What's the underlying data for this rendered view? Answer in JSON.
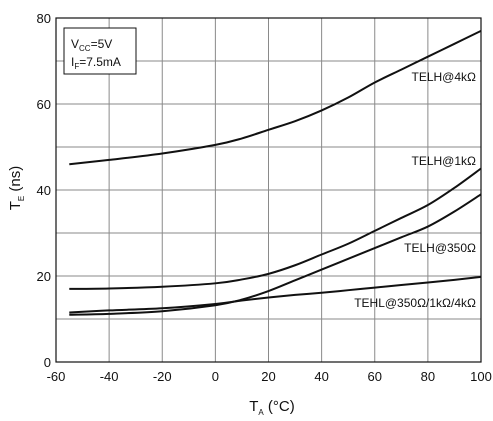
{
  "chart_data": {
    "type": "line",
    "xlabel": {
      "main": "T",
      "sub": "A",
      "unit": " (°C)"
    },
    "ylabel": {
      "main": "T",
      "sub": "E",
      "unit": " (ns)"
    },
    "xlim": [
      -60,
      100
    ],
    "ylim": [
      0,
      80
    ],
    "xticks": [
      -60,
      -40,
      -20,
      0,
      20,
      40,
      60,
      80,
      100
    ],
    "yticks": [
      0,
      20,
      40,
      60,
      80
    ],
    "grid": true,
    "conditions": [
      {
        "main": "V",
        "sub": "CC",
        "rest": "=5V"
      },
      {
        "main": "I",
        "sub": "F",
        "rest": "=7.5mA"
      }
    ],
    "series": [
      {
        "name": "TELH@4kΩ",
        "x": [
          -55,
          -40,
          -20,
          0,
          10,
          20,
          30,
          40,
          50,
          60,
          70,
          80,
          90,
          100
        ],
        "y": [
          46,
          47,
          48.5,
          50.5,
          52,
          54,
          56,
          58.5,
          61.5,
          65,
          68,
          71,
          74,
          77
        ]
      },
      {
        "name": "TELH@1kΩ",
        "x": [
          -55,
          -40,
          -20,
          0,
          10,
          20,
          30,
          40,
          50,
          60,
          70,
          80,
          90,
          100
        ],
        "y": [
          17,
          17.1,
          17.5,
          18.3,
          19.2,
          20.5,
          22.5,
          25,
          27.5,
          30.5,
          33.5,
          36.5,
          40.5,
          45
        ]
      },
      {
        "name": "TELH@350Ω",
        "x": [
          -55,
          -40,
          -20,
          0,
          10,
          20,
          30,
          40,
          50,
          60,
          70,
          80,
          90,
          100
        ],
        "y": [
          11,
          11.2,
          11.8,
          13.2,
          14.5,
          16.5,
          19,
          21.5,
          24,
          26.5,
          29,
          31.5,
          35,
          39
        ]
      },
      {
        "name": "TEHL@350Ω/1kΩ/4kΩ",
        "x": [
          -55,
          -40,
          -20,
          0,
          10,
          20,
          30,
          40,
          50,
          60,
          70,
          80,
          90,
          100
        ],
        "y": [
          11.5,
          12,
          12.5,
          13.5,
          14.3,
          15,
          15.6,
          16.1,
          16.7,
          17.3,
          17.9,
          18.5,
          19.1,
          19.8
        ]
      }
    ]
  }
}
